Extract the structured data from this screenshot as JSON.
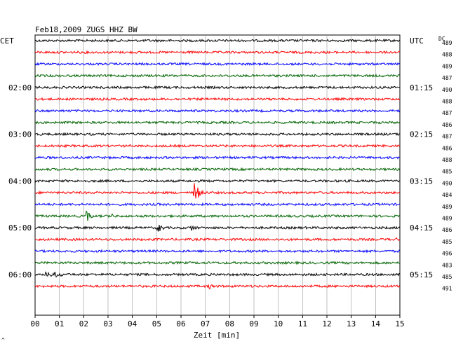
{
  "chart_data": {
    "type": "line",
    "title": "Feb18,2009   ZUGS HHZ BW",
    "left_zone_label": "CET",
    "right_zone_label": "UTC",
    "dc_label": "DC",
    "xlabel": "Zeit [min]",
    "xlim": [
      0,
      15
    ],
    "x_ticks": [
      "00",
      "01",
      "02",
      "03",
      "04",
      "05",
      "06",
      "07",
      "08",
      "09",
      "10",
      "11",
      "12",
      "13",
      "14",
      "15"
    ],
    "trace_colors": [
      "#000000",
      "#ff0000",
      "#0000ff",
      "#006400"
    ],
    "left_hour_labels": [
      {
        "trace": 4,
        "label": "02:00"
      },
      {
        "trace": 8,
        "label": "03:00"
      },
      {
        "trace": 12,
        "label": "04:00"
      },
      {
        "trace": 16,
        "label": "05:00"
      },
      {
        "trace": 20,
        "label": "06:00"
      }
    ],
    "right_hour_labels": [
      {
        "trace": 0,
        "label": "UTC"
      },
      {
        "trace": 4,
        "label": "01:15"
      },
      {
        "trace": 8,
        "label": "02:15"
      },
      {
        "trace": 12,
        "label": "03:15"
      },
      {
        "trace": 16,
        "label": "04:15"
      },
      {
        "trace": 20,
        "label": "05:15"
      }
    ],
    "dc_values": [
      "489",
      "488",
      "489",
      "487",
      "490",
      "488",
      "487",
      "486",
      "487",
      "486",
      "488",
      "485",
      "490",
      "484",
      "489",
      "489",
      "486",
      "485",
      "496",
      "483",
      "485",
      "491"
    ],
    "events": [
      {
        "trace": 13,
        "minute": 6.5,
        "amp": 16,
        "dur": 0.6
      },
      {
        "trace": 15,
        "minute": 2.1,
        "amp": 8,
        "dur": 0.5
      },
      {
        "trace": 15,
        "minute": 3.1,
        "amp": 4,
        "dur": 0.3
      },
      {
        "trace": 16,
        "minute": 5.0,
        "amp": 9,
        "dur": 0.3
      },
      {
        "trace": 16,
        "minute": 6.4,
        "amp": 6,
        "dur": 0.3
      },
      {
        "trace": 17,
        "minute": 14.7,
        "amp": 4,
        "dur": 0.3
      },
      {
        "trace": 20,
        "minute": 0.4,
        "amp": 5,
        "dur": 0.4
      },
      {
        "trace": 20,
        "minute": 0.8,
        "amp": 7,
        "dur": 0.4
      },
      {
        "trace": 21,
        "minute": 7.1,
        "amp": 6,
        "dur": 0.3
      },
      {
        "trace": 22,
        "minute": 1.1,
        "amp": 4,
        "dur": 0.3
      }
    ],
    "grid": true,
    "corner_mark": "^"
  }
}
